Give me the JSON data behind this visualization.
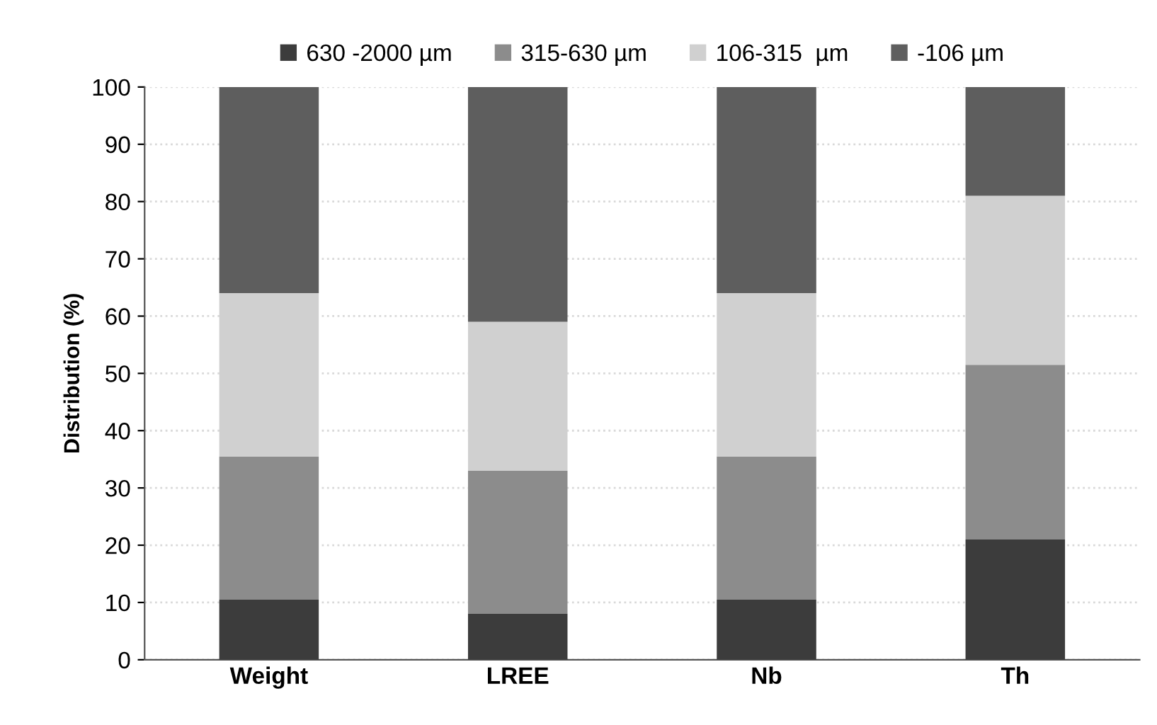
{
  "chart_data": {
    "type": "bar",
    "stacked": true,
    "ylabel": "Distribution (%)",
    "categories": [
      "Weight",
      "LREE",
      "Nb",
      "Th"
    ],
    "series": [
      {
        "name": "630 -2000 µm",
        "color": "#3c3c3c",
        "values": [
          10.5,
          8,
          10.5,
          21
        ]
      },
      {
        "name": "315-630 µm",
        "color": "#8c8c8c",
        "values": [
          25,
          25,
          25,
          30.5
        ]
      },
      {
        "name": "106-315  µm",
        "color": "#d0d0d0",
        "values": [
          28.5,
          26,
          28.5,
          29.5
        ]
      },
      {
        "name": "-106 µm",
        "color": "#5e5e5e",
        "values": [
          36,
          41,
          36,
          19
        ]
      }
    ],
    "ylim": [
      0,
      100
    ],
    "yticks": [
      0,
      10,
      20,
      30,
      40,
      50,
      60,
      70,
      80,
      90,
      100
    ],
    "grid": "y",
    "legend": "top"
  }
}
